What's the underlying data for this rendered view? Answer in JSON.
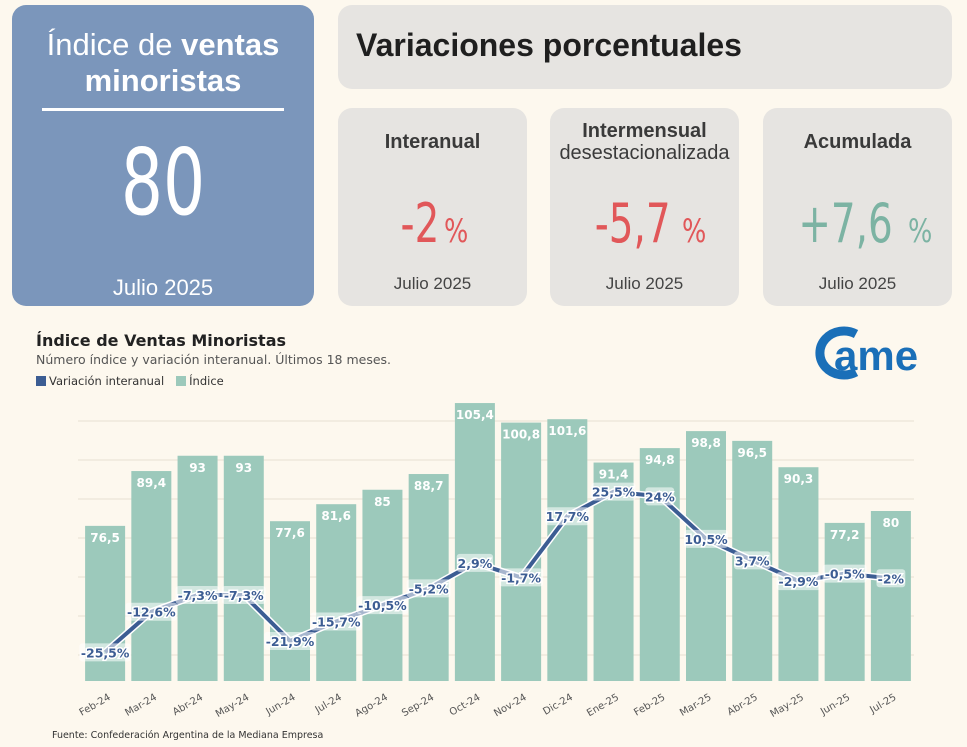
{
  "index_card": {
    "title_normal": "Índice de",
    "title_bold_1": "ventas",
    "title_bold_2": "minoristas",
    "value": "80",
    "date": "Julio 2025"
  },
  "variations": {
    "title": "Variaciones porcentuales",
    "cards": [
      {
        "label": "Interanual",
        "value": "-2",
        "unit": "%",
        "date": "Julio 2025",
        "color": "#e15759"
      },
      {
        "label": "Intermensual",
        "sublabel": "desestacionalizada",
        "value": "-5,7",
        "unit": "%",
        "date": "Julio 2025",
        "color": "#e15759"
      },
      {
        "label": "Acumulada",
        "value": "+7,6",
        "unit": "%",
        "date": "Julio 2025",
        "color": "#7cb3a3"
      }
    ]
  },
  "chart_data": {
    "type": "bar",
    "title": "Índice de Ventas Minoristas",
    "subtitle": "Número índice y variación interanual. Últimos 18 meses.",
    "categories": [
      "Feb-24",
      "Mar-24",
      "Abr-24",
      "May-24",
      "Jun-24",
      "Jul-24",
      "Ago-24",
      "Sep-24",
      "Oct-24",
      "Nov-24",
      "Dic-24",
      "Ene-25",
      "Feb-25",
      "Mar-25",
      "Abr-25",
      "May-25",
      "Jun-25",
      "Jul-25"
    ],
    "series": [
      {
        "name": "Variación interanual",
        "type": "line",
        "color": "#3c5d93",
        "values": [
          -25.5,
          -12.6,
          -7.3,
          -7.3,
          -21.9,
          -15.7,
          -10.5,
          -5.2,
          2.9,
          -1.7,
          17.7,
          25.5,
          24,
          10.5,
          3.7,
          -2.9,
          -0.5,
          -2
        ],
        "labels": [
          "-25,5%",
          "-12,6%",
          "-7,3%",
          "-7,3%",
          "-21,9%",
          "-15,7%",
          "-10,5%",
          "-5,2%",
          "2,9%",
          "-1,7%",
          "17,7%",
          "25,5%",
          "24%",
          "10,5%",
          "3,7%",
          "-2,9%",
          "-0,5%",
          "-2%"
        ]
      },
      {
        "name": "Índice",
        "type": "bar",
        "color": "#9cc9bb",
        "values": [
          76.5,
          89.4,
          93,
          93,
          77.6,
          81.6,
          85,
          88.7,
          105.4,
          100.8,
          101.6,
          91.4,
          94.8,
          98.8,
          96.5,
          90.3,
          77.2,
          80
        ],
        "labels": [
          "76,5",
          "89,4",
          "93",
          "93",
          "77,6",
          "81,6",
          "85",
          "88,7",
          "105,4",
          "100,8",
          "101,6",
          "91,4",
          "94,8",
          "98,8",
          "96,5",
          "90,3",
          "77,2",
          "80"
        ]
      }
    ],
    "grid": true,
    "legend": "top-left"
  },
  "source": "Fuente: Confederación Argentina de la Mediana Empresa",
  "logo_text": "ame"
}
